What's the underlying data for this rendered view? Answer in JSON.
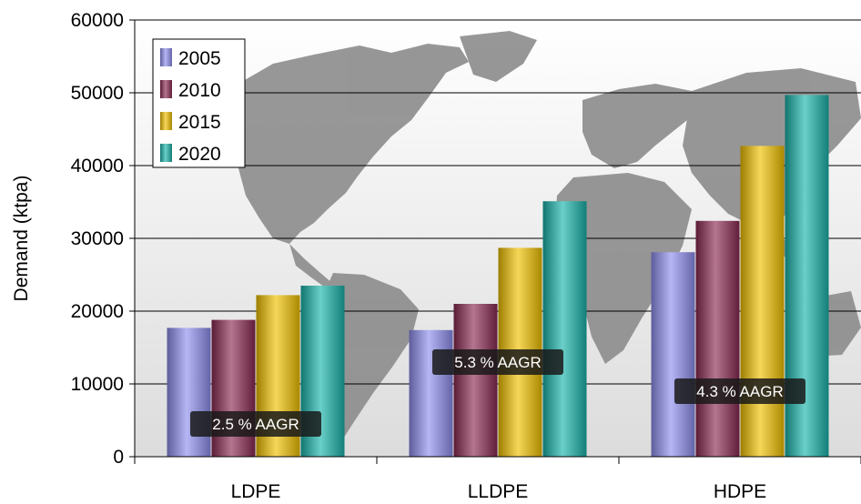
{
  "chart_data": {
    "type": "bar",
    "categories": [
      "LDPE",
      "LLDPE",
      "HDPE"
    ],
    "series": [
      {
        "name": "2005",
        "values": [
          17700,
          17400,
          28100
        ],
        "color": "#8f8ff0"
      },
      {
        "name": "2010",
        "values": [
          18800,
          21000,
          32400
        ],
        "color": "#8b2a52"
      },
      {
        "name": "2015",
        "values": [
          22200,
          28700,
          42700
        ],
        "color": "#f2c200"
      },
      {
        "name": "2020",
        "values": [
          23500,
          35100,
          49700
        ],
        "color": "#1ab5ab"
      }
    ],
    "ylabel": "Demand (ktpa)",
    "xlabel": "",
    "ylim": [
      0,
      60000
    ],
    "yticks": [
      0,
      10000,
      20000,
      30000,
      40000,
      50000,
      60000
    ],
    "grid": true,
    "legend_position": "top-left",
    "annotations": [
      {
        "text": "2.5 % AAGR",
        "category": "LDPE",
        "y": 4500
      },
      {
        "text": "5.3 % AAGR",
        "category": "LLDPE",
        "y": 13000
      },
      {
        "text": "4.3 % AAGR",
        "category": "HDPE",
        "y": 9000
      }
    ],
    "background": "world-map"
  }
}
